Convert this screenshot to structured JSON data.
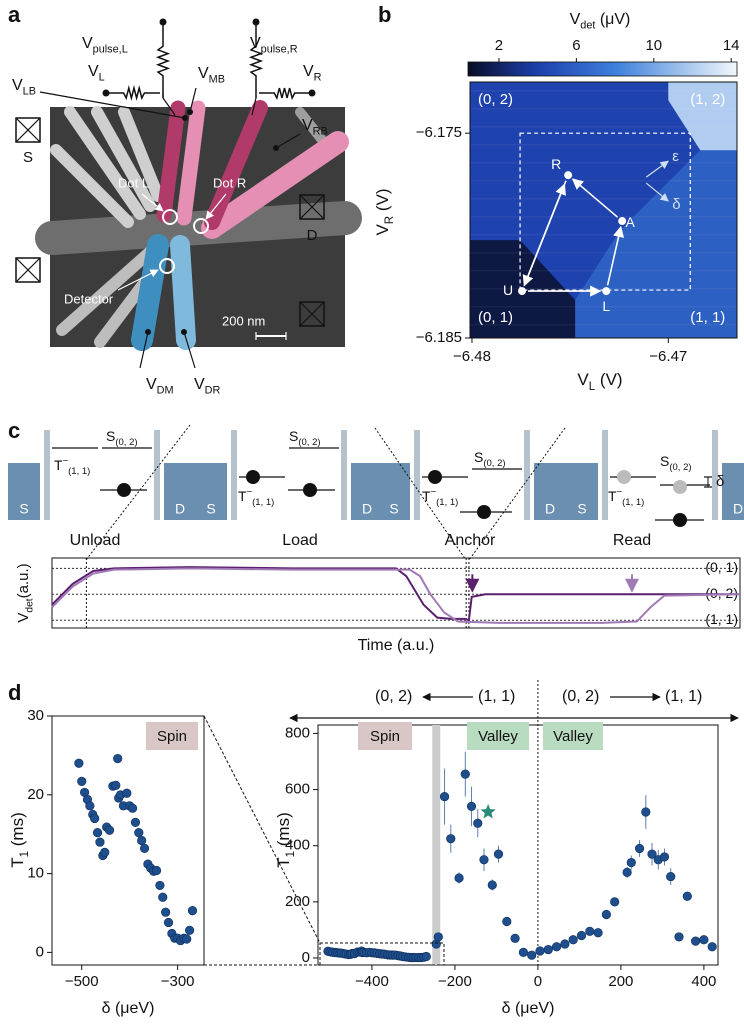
{
  "panel_labels": [
    "a",
    "b",
    "c",
    "d"
  ],
  "device": {
    "labels": [
      {
        "text": "V",
        "sub": "pulse,L"
      },
      {
        "text": "V",
        "sub": "L"
      },
      {
        "text": "V",
        "sub": "MB"
      },
      {
        "text": "V",
        "sub": "pulse,R"
      },
      {
        "text": "V",
        "sub": "R"
      },
      {
        "text": "V",
        "sub": "LB"
      },
      {
        "text": "V",
        "sub": "RB"
      },
      {
        "text": "V",
        "sub": "DM"
      },
      {
        "text": "V",
        "sub": "DR"
      }
    ],
    "contacts": [
      "S",
      "D"
    ],
    "dots": [
      "Dot L",
      "Dot R",
      "Detector"
    ],
    "scale_bar": "200 nm"
  },
  "levels_diagram": {
    "lead_left": "S",
    "lead_right": "D",
    "triplet": {
      "text": "T",
      "sup": "−",
      "sub": "(1, 1)"
    },
    "singlet": {
      "text": "S",
      "sub": "(0, 2)"
    },
    "stages": [
      "Unload",
      "Load",
      "Anchor",
      "Read"
    ],
    "detuning": "δ"
  },
  "chart_data": [
    {
      "type": "heatmap",
      "colorbar": {
        "label": {
          "text": "V",
          "sub": "det",
          "unit": " (μV)"
        },
        "lim": [
          0.4,
          14.3
        ],
        "ticks": [
          2,
          6,
          10,
          14
        ]
      },
      "xlabel": {
        "text": "V",
        "sub": "L",
        "unit": " (V)"
      },
      "ylabel": {
        "text": "V",
        "sub": "R",
        "unit": " (V)"
      },
      "xlim": [
        -6.4801,
        -6.4665
      ],
      "xticks": [
        {
          "value": -6.48,
          "label": "−6.48"
        },
        {
          "value": -6.47,
          "label": "−6.47"
        }
      ],
      "ylim": [
        -6.185,
        -6.1725
      ],
      "yticks": [
        {
          "value": -6.185,
          "label": "−6.185"
        },
        {
          "value": -6.175,
          "label": "−6.175"
        }
      ],
      "background_value": 4.2,
      "regions": [
        {
          "value": 1.2,
          "points": [
            [
              -6.4801,
              -6.18022
            ],
            [
              -6.47755,
              -6.18022
            ],
            [
              -6.47474,
              -6.18315
            ],
            [
              -6.47474,
              -6.185
            ],
            [
              -6.4801,
              -6.185
            ]
          ]
        },
        {
          "value": 6.0,
          "points": [
            [
              -6.47474,
              -6.185
            ],
            [
              -6.47474,
              -6.18315
            ],
            [
              -6.47245,
              -6.17973
            ],
            [
              -6.47041,
              -6.17778
            ],
            [
              -6.46837,
              -6.17583
            ],
            [
              -6.4665,
              -6.17583
            ],
            [
              -6.4665,
              -6.185
            ]
          ]
        },
        {
          "value": 12.0,
          "points": [
            [
              -6.47,
              -6.1725
            ],
            [
              -6.4665,
              -6.1725
            ],
            [
              -6.4665,
              -6.17583
            ],
            [
              -6.46837,
              -6.17583
            ],
            [
              -6.47,
              -6.17339
            ]
          ]
        }
      ],
      "region_labels": [
        {
          "label": "(0, 2)",
          "x": -6.47969,
          "y": -6.17339
        },
        {
          "label": "(1, 2)",
          "x": -6.46888,
          "y": -6.17339
        },
        {
          "label": "(0, 1)",
          "x": -6.47969,
          "y": -6.18402
        },
        {
          "label": "(1, 1)",
          "x": -6.46888,
          "y": -6.18402
        }
      ],
      "window": {
        "x": [
          -6.47755,
          -6.46888
        ],
        "y": [
          -6.18266,
          -6.175
        ]
      },
      "points": [
        {
          "label": "U",
          "x": -6.47745,
          "y": -6.18271
        },
        {
          "label": "R",
          "x": -6.4751,
          "y": -6.17705
        },
        {
          "label": "A",
          "x": -6.47235,
          "y": -6.17929
        },
        {
          "label": "L",
          "x": -6.47316,
          "y": -6.18271
        }
      ],
      "axes_labels": [
        {
          "label": "ε",
          "x": -6.4698,
          "y": -6.17617
        },
        {
          "label": "δ",
          "x": -6.4698,
          "y": -6.17851
        }
      ]
    },
    {
      "type": "line",
      "ylabel": {
        "text": "V",
        "sub": "det",
        "unit": "(a.u.)"
      },
      "xlabel": "Time (a.u.)",
      "xlim": [
        0,
        100
      ],
      "ylim": [
        -0.3,
        2.4
      ],
      "levels": [
        {
          "value": 2,
          "label": "(0, 1)"
        },
        {
          "value": 1,
          "label": "(0, 2)"
        },
        {
          "value": 0,
          "label": "(1, 1)"
        }
      ],
      "markers": [
        5,
        60.2,
        60.6
      ],
      "arrows": [
        {
          "x": 61.1,
          "color": "#5b1f6e"
        },
        {
          "x": 84.3,
          "color": "#a07ab5"
        }
      ],
      "series": [
        {
          "color": "#5b1f6e",
          "x": [
            0,
            3,
            6,
            9,
            20,
            35,
            50,
            51.5,
            54,
            56,
            58,
            60,
            60.6,
            61,
            63,
            80,
            100
          ],
          "values": [
            0.6,
            1.4,
            1.9,
            2.0,
            2.05,
            2.0,
            2.0,
            1.7,
            0.6,
            0.1,
            0.05,
            0.05,
            0.0,
            0.9,
            1.0,
            1.0,
            1.0
          ]
        },
        {
          "color": "#a07ab5",
          "x": [
            0,
            3,
            6,
            9,
            20,
            35,
            52,
            53.5,
            55,
            57,
            59,
            65,
            80,
            85,
            87,
            89,
            100
          ],
          "values": [
            0.5,
            1.3,
            1.8,
            1.95,
            2.0,
            1.95,
            1.95,
            1.7,
            1.0,
            0.3,
            -0.05,
            -0.1,
            -0.1,
            -0.05,
            0.5,
            0.95,
            1.0
          ]
        }
      ]
    },
    {
      "type": "scatter",
      "ylabel": {
        "text": "T",
        "sub": "1",
        "unit": " (ms)"
      },
      "xlabel": "δ (μeV)",
      "xlim": [
        -562,
        -245
      ],
      "xticks": [
        {
          "value": -500,
          "label": "−500"
        },
        {
          "value": -300,
          "label": "−300"
        }
      ],
      "ylim": [
        -1.6,
        30
      ],
      "yticks": [
        0,
        10,
        20,
        30
      ],
      "labels": [
        "Spin"
      ],
      "series": [
        {
          "color": "#1f4e8c",
          "x": [
            -506,
            -500,
            -494,
            -488,
            -483,
            -477,
            -473,
            -467,
            -462,
            -456,
            -452,
            -448,
            -442,
            -435,
            -429,
            -425,
            -423,
            -419,
            -413,
            -406,
            -400,
            -394,
            -388,
            -381,
            -375,
            -369,
            -362,
            -356,
            -350,
            -344,
            -337,
            -331,
            -325,
            -319,
            -312,
            -306,
            -300,
            -294,
            -287,
            -281,
            -275,
            -269
          ],
          "values": [
            24.0,
            21.7,
            20.3,
            19.4,
            18.6,
            17.5,
            17.0,
            15.2,
            14.0,
            12.3,
            12.7,
            15.9,
            15.5,
            21.1,
            21.2,
            24.6,
            19.6,
            20.0,
            18.6,
            20.2,
            18.6,
            18.3,
            16.5,
            15.2,
            14.2,
            13.2,
            11.2,
            10.7,
            10.3,
            10.4,
            8.5,
            7.0,
            5.1,
            3.8,
            2.4,
            1.8,
            1.8,
            1.5,
            1.8,
            1.7,
            2.8,
            5.3
          ]
        }
      ]
    },
    {
      "type": "scatter",
      "ylabel": {
        "text": "T",
        "sub": "1",
        "unit": " (ms)"
      },
      "xlabel": "δ (μeV)",
      "xlim": [
        -530,
        434
      ],
      "xticks": [
        {
          "value": -400,
          "label": "−400"
        },
        {
          "value": -200,
          "label": "−200"
        },
        0,
        200,
        400
      ],
      "ylim": [
        -25,
        830
      ],
      "yticks": [
        0,
        200,
        400,
        600,
        800
      ],
      "labels": [
        "Spin",
        "Valley",
        "Valley"
      ],
      "transitions": [
        {
          "from": "(0, 2)",
          "to": "(1, 1)"
        },
        {
          "from": "(0, 2)",
          "to": "(1, 1)"
        }
      ],
      "band": -245,
      "vline": 0,
      "star": {
        "x": -120,
        "y": 520,
        "color": "#2a8a7a"
      },
      "series": [
        {
          "color": "#1f4e8c",
          "x": [
            -506,
            -500,
            -494,
            -488,
            -483,
            -477,
            -473,
            -467,
            -462,
            -456,
            -452,
            -448,
            -442,
            -435,
            -429,
            -425,
            -423,
            -419,
            -413,
            -406,
            -400,
            -394,
            -388,
            -381,
            -375,
            -369,
            -362,
            -356,
            -350,
            -344,
            -337,
            -331,
            -325,
            -319,
            -312,
            -306,
            -300,
            -294,
            -287,
            -281,
            -275,
            -269
          ],
          "values": [
            24.0,
            21.7,
            20.3,
            19.4,
            18.6,
            17.5,
            17.0,
            15.2,
            14.0,
            12.3,
            12.7,
            15.9,
            15.5,
            21.1,
            21.2,
            24.6,
            19.6,
            20.0,
            18.6,
            20.2,
            18.6,
            18.3,
            16.5,
            15.2,
            14.2,
            13.2,
            11.2,
            10.7,
            10.3,
            10.4,
            8.5,
            7.0,
            5.1,
            3.8,
            2.4,
            1.8,
            1.8,
            1.5,
            1.8,
            1.7,
            2.8,
            5.3
          ]
        },
        {
          "color": "#1f4e8c",
          "x": [
            -245,
            -240,
            -225,
            -210,
            -190,
            -175,
            -160,
            -145,
            -130,
            -110,
            -95,
            -75,
            -55,
            -35,
            -15,
            5,
            25,
            45,
            65,
            85,
            105,
            125,
            145,
            165,
            185,
            215,
            225,
            245,
            260,
            275,
            290,
            305,
            320,
            340,
            360,
            380,
            400,
            420
          ],
          "values": [
            50,
            75,
            575,
            425,
            285,
            655,
            540,
            480,
            350,
            260,
            370,
            130,
            70,
            20,
            10,
            25,
            30,
            40,
            50,
            65,
            80,
            95,
            90,
            155,
            200,
            305,
            340,
            390,
            520,
            370,
            350,
            360,
            290,
            75,
            220,
            60,
            65,
            40
          ],
          "errors": [
            10,
            15,
            100,
            50,
            20,
            80,
            70,
            50,
            40,
            20,
            30,
            10,
            8,
            5,
            4,
            4,
            4,
            5,
            5,
            6,
            8,
            10,
            8,
            12,
            15,
            20,
            25,
            30,
            60,
            40,
            35,
            30,
            30,
            10,
            15,
            6,
            6,
            5
          ]
        }
      ]
    }
  ]
}
